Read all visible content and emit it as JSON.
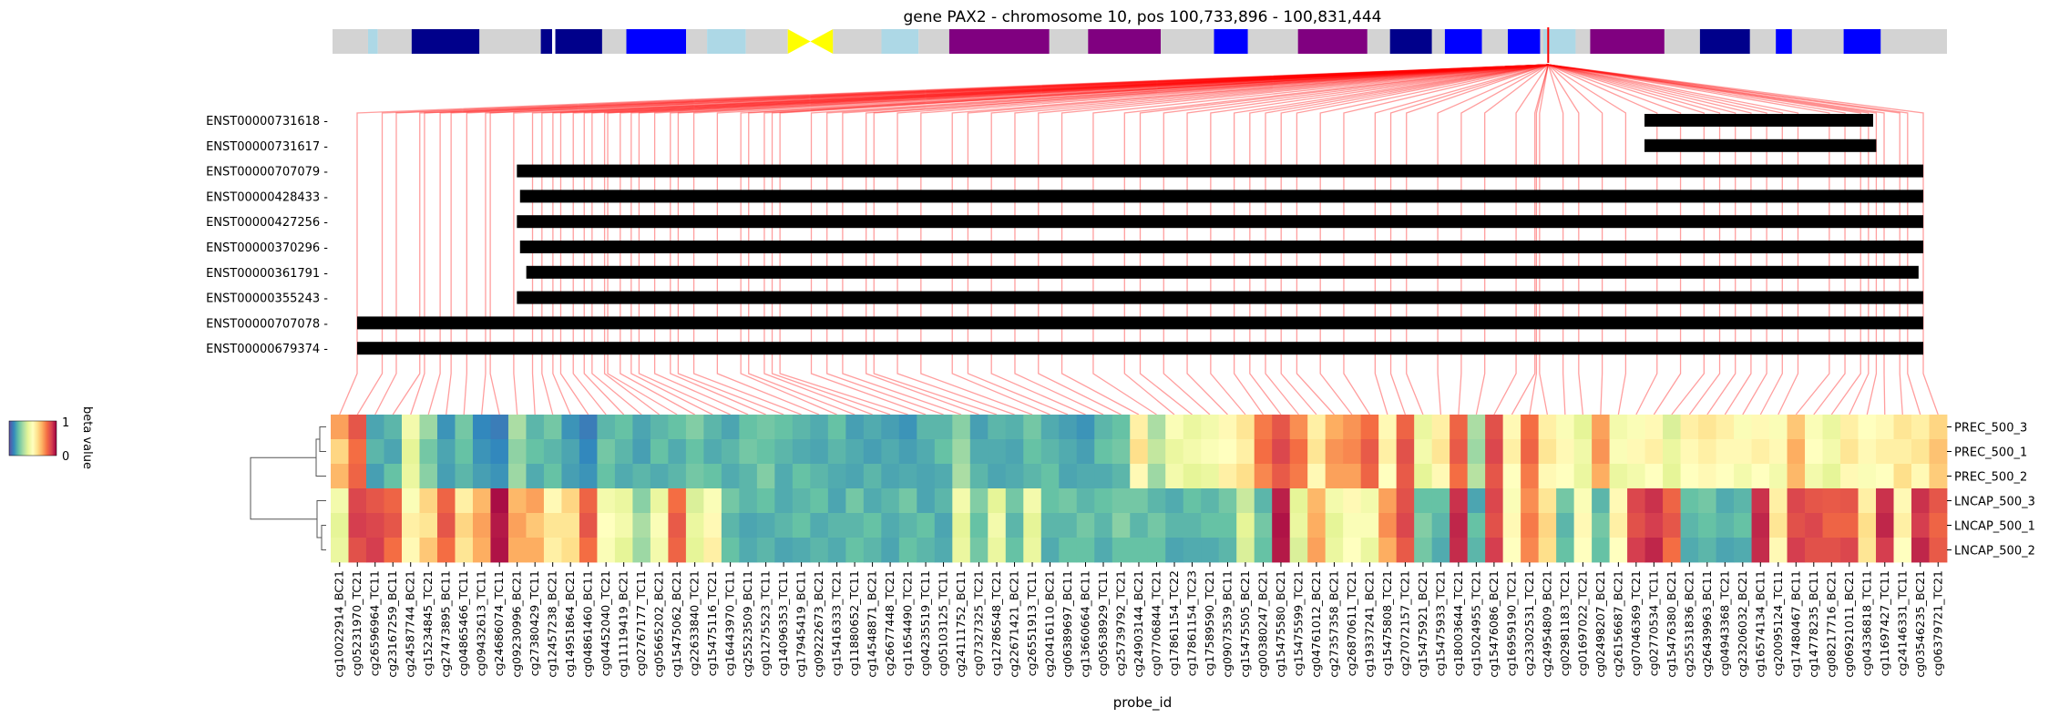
{
  "title": "gene PAX2 - chromosome 10, pos 100,733,896 - 100,831,444",
  "xlabel": "probe_id",
  "colorbar": {
    "label": "beta value",
    "max_label": "1",
    "min_label": "0",
    "colors": [
      "#5e4fa2",
      "#3288bd",
      "#66c2a5",
      "#abdda4",
      "#e6f598",
      "#ffffbf",
      "#fee08b",
      "#fdae61",
      "#f46d43",
      "#d53e4f",
      "#9e0142"
    ]
  },
  "chromosome_bands": [
    {
      "start": 0,
      "end": 0.022,
      "color": "#d3d3d3"
    },
    {
      "start": 0.022,
      "end": 0.028,
      "color": "#add8e6"
    },
    {
      "start": 0.028,
      "end": 0.049,
      "color": "#d3d3d3"
    },
    {
      "start": 0.049,
      "end": 0.091,
      "color": "#00008b"
    },
    {
      "start": 0.091,
      "end": 0.129,
      "color": "#d3d3d3"
    },
    {
      "start": 0.129,
      "end": 0.136,
      "color": "#00008b"
    },
    {
      "start": 0.136,
      "end": 0.138,
      "color": "#ffffff"
    },
    {
      "start": 0.138,
      "end": 0.167,
      "color": "#00008b"
    },
    {
      "start": 0.167,
      "end": 0.182,
      "color": "#d3d3d3"
    },
    {
      "start": 0.182,
      "end": 0.219,
      "color": "#0000ff"
    },
    {
      "start": 0.219,
      "end": 0.232,
      "color": "#d3d3d3"
    },
    {
      "start": 0.232,
      "end": 0.256,
      "color": "#add8e6"
    },
    {
      "start": 0.256,
      "end": 0.282,
      "color": "#d3d3d3"
    },
    {
      "start": 0.282,
      "end": 0.31,
      "color": "#ffff00",
      "shape": "centromere"
    },
    {
      "start": 0.31,
      "end": 0.34,
      "color": "#d3d3d3"
    },
    {
      "start": 0.34,
      "end": 0.363,
      "color": "#add8e6"
    },
    {
      "start": 0.363,
      "end": 0.382,
      "color": "#d3d3d3"
    },
    {
      "start": 0.382,
      "end": 0.444,
      "color": "#800080"
    },
    {
      "start": 0.444,
      "end": 0.468,
      "color": "#d3d3d3"
    },
    {
      "start": 0.468,
      "end": 0.513,
      "color": "#800080"
    },
    {
      "start": 0.513,
      "end": 0.546,
      "color": "#d3d3d3"
    },
    {
      "start": 0.546,
      "end": 0.567,
      "color": "#0000ff"
    },
    {
      "start": 0.567,
      "end": 0.598,
      "color": "#d3d3d3"
    },
    {
      "start": 0.598,
      "end": 0.641,
      "color": "#800080"
    },
    {
      "start": 0.641,
      "end": 0.655,
      "color": "#d3d3d3"
    },
    {
      "start": 0.655,
      "end": 0.681,
      "color": "#00008b"
    },
    {
      "start": 0.681,
      "end": 0.689,
      "color": "#d3d3d3"
    },
    {
      "start": 0.689,
      "end": 0.712,
      "color": "#0000ff"
    },
    {
      "start": 0.712,
      "end": 0.728,
      "color": "#d3d3d3"
    },
    {
      "start": 0.728,
      "end": 0.748,
      "color": "#0000ff"
    },
    {
      "start": 0.748,
      "end": 0.75,
      "color": "#d3d3d3"
    },
    {
      "start": 0.75,
      "end": 0.77,
      "color": "#add8e6"
    },
    {
      "start": 0.77,
      "end": 0.779,
      "color": "#d3d3d3"
    },
    {
      "start": 0.779,
      "end": 0.825,
      "color": "#800080"
    },
    {
      "start": 0.825,
      "end": 0.847,
      "color": "#d3d3d3"
    },
    {
      "start": 0.847,
      "end": 0.878,
      "color": "#00008b"
    },
    {
      "start": 0.878,
      "end": 0.894,
      "color": "#d3d3d3"
    },
    {
      "start": 0.894,
      "end": 0.904,
      "color": "#0000ff"
    },
    {
      "start": 0.904,
      "end": 0.936,
      "color": "#d3d3d3"
    },
    {
      "start": 0.936,
      "end": 0.959,
      "color": "#0000ff"
    },
    {
      "start": 0.959,
      "end": 1,
      "color": "#d3d3d3"
    }
  ],
  "gene_marker": 0.753,
  "transcripts": [
    {
      "id": "ENST00000731618",
      "start": 0.822,
      "end": 0.968
    },
    {
      "id": "ENST00000731617",
      "start": 0.822,
      "end": 0.97
    },
    {
      "id": "ENST00000707079",
      "start": 0.102,
      "end": 1.0
    },
    {
      "id": "ENST00000428433",
      "start": 0.104,
      "end": 1.0
    },
    {
      "id": "ENST00000427256",
      "start": 0.102,
      "end": 1.0
    },
    {
      "id": "ENST00000370296",
      "start": 0.104,
      "end": 1.0
    },
    {
      "id": "ENST00000361791",
      "start": 0.108,
      "end": 0.997
    },
    {
      "id": "ENST00000355243",
      "start": 0.102,
      "end": 1.0
    },
    {
      "id": "ENST00000707078",
      "start": 0.0,
      "end": 1.0
    },
    {
      "id": "ENST00000679374",
      "start": 0.0,
      "end": 1.0
    }
  ],
  "chart_data": {
    "type": "heatmap",
    "title": "gene PAX2 - chromosome 10, pos 100,733,896 - 100,831,444",
    "xlabel": "probe_id",
    "colorbar_label": "beta value",
    "vmin": 0,
    "vmax": 1,
    "rows": [
      "PREC_500_3",
      "PREC_500_1",
      "PREC_500_2",
      "LNCAP_500_3",
      "LNCAP_500_1",
      "LNCAP_500_2"
    ],
    "columns": [
      "cg10022914_BC21",
      "cg05231970_TC21",
      "cg26596964_TC11",
      "cg23167259_BC11",
      "cg24587744_BC21",
      "cg15234845_TC21",
      "cg27473895_BC11",
      "cg04865466_TC11",
      "cg09432613_TC11",
      "cg24686074_TC11",
      "cg09230996_BC21",
      "cg27380429_TC11",
      "cg12457238_BC21",
      "cg14951864_BC21",
      "cg04861460_BC11",
      "cg04452040_TC21",
      "cg11119419_BC21",
      "cg02767177_TC11",
      "cg05665202_BC21",
      "cg15475062_BC21",
      "cg22633840_TC21",
      "cg15475116_TC21",
      "cg16443970_TC11",
      "cg25523509_BC11",
      "cg01275523_TC11",
      "cg14096353_TC11",
      "cg17945419_BC11",
      "cg09222673_BC21",
      "cg15416333_TC21",
      "cg11880652_TC11",
      "cg14548871_BC21",
      "cg26677448_TC21",
      "cg11654490_TC21",
      "cg04235519_TC11",
      "cg05103125_TC11",
      "cg24111752_BC11",
      "cg07327325_TC21",
      "cg12786548_TC21",
      "cg22671421_BC21",
      "cg26551913_TC11",
      "cg20416110_BC21",
      "cg06389697_BC11",
      "cg13660664_BC11",
      "cg05638929_TC11",
      "cg25739792_TC21",
      "cg24903144_BC21",
      "cg07706844_TC21",
      "cg17861154_TC22",
      "cg17861154_TC23",
      "cg17589590_TC21",
      "cg09073539_BC11",
      "cg15475505_BC21",
      "cg00380247_BC21",
      "cg15475580_BC21",
      "cg15475599_TC21",
      "cg04761012_BC21",
      "cg27357358_BC21",
      "cg26870611_TC21",
      "cg19337241_BC21",
      "cg15475808_TC21",
      "cg27072157_TC21",
      "cg15475921_BC21",
      "cg15475933_TC21",
      "cg18003644_TC21",
      "cg15024955_TC21",
      "cg15476086_BC21",
      "cg16959190_TC21",
      "cg23302531_TC21",
      "cg24954809_BC21",
      "cg02981183_TC21",
      "cg01697022_TC21",
      "cg02498207_BC21",
      "cg26156687_BC21",
      "cg07046369_TC21",
      "cg02770534_TC11",
      "cg15476380_BC21",
      "cg25531836_BC21",
      "cg26439963_BC11",
      "cg04943368_TC21",
      "cg23206032_BC21",
      "cg16574134_BC11",
      "cg20095124_TC11",
      "cg17480467_BC11",
      "cg14778235_BC11",
      "cg08217716_BC21",
      "cg06921011_BC21",
      "cg04336818_TC11",
      "cg11697427_TC11",
      "cg24146331_TC11",
      "cg03546235_BC21",
      "cg06379721_TC21"
    ],
    "values": [
      [
        0.72,
        0.85,
        0.15,
        0.18,
        0.45,
        0.28,
        0.12,
        0.22,
        0.1,
        0.08,
        0.3,
        0.18,
        0.22,
        0.12,
        0.08,
        0.18,
        0.2,
        0.15,
        0.18,
        0.2,
        0.24,
        0.18,
        0.15,
        0.2,
        0.22,
        0.2,
        0.18,
        0.16,
        0.2,
        0.14,
        0.16,
        0.14,
        0.12,
        0.18,
        0.18,
        0.25,
        0.14,
        0.18,
        0.17,
        0.22,
        0.16,
        0.14,
        0.12,
        0.18,
        0.2,
        0.55,
        0.3,
        0.48,
        0.42,
        0.45,
        0.52,
        0.58,
        0.78,
        0.85,
        0.75,
        0.55,
        0.7,
        0.74,
        0.8,
        0.52,
        0.82,
        0.42,
        0.55,
        0.82,
        0.3,
        0.86,
        0.52,
        0.8,
        0.55,
        0.48,
        0.4,
        0.72,
        0.45,
        0.48,
        0.52,
        0.38,
        0.55,
        0.58,
        0.55,
        0.48,
        0.52,
        0.48,
        0.65,
        0.48,
        0.42,
        0.55,
        0.5,
        0.52,
        0.58,
        0.55,
        0.62
      ],
      [
        0.62,
        0.8,
        0.18,
        0.15,
        0.4,
        0.22,
        0.15,
        0.2,
        0.12,
        0.1,
        0.26,
        0.2,
        0.18,
        0.15,
        0.1,
        0.22,
        0.18,
        0.14,
        0.2,
        0.16,
        0.2,
        0.16,
        0.18,
        0.22,
        0.2,
        0.18,
        0.16,
        0.15,
        0.18,
        0.16,
        0.14,
        0.16,
        0.14,
        0.16,
        0.2,
        0.28,
        0.16,
        0.16,
        0.15,
        0.2,
        0.18,
        0.16,
        0.14,
        0.2,
        0.22,
        0.6,
        0.34,
        0.42,
        0.45,
        0.48,
        0.5,
        0.55,
        0.8,
        0.88,
        0.8,
        0.58,
        0.74,
        0.76,
        0.84,
        0.55,
        0.86,
        0.45,
        0.58,
        0.84,
        0.28,
        0.88,
        0.55,
        0.82,
        0.58,
        0.52,
        0.44,
        0.74,
        0.48,
        0.52,
        0.55,
        0.42,
        0.52,
        0.55,
        0.52,
        0.52,
        0.55,
        0.52,
        0.7,
        0.5,
        0.45,
        0.58,
        0.52,
        0.55,
        0.55,
        0.58,
        0.66
      ],
      [
        0.68,
        0.82,
        0.14,
        0.2,
        0.42,
        0.25,
        0.14,
        0.18,
        0.14,
        0.12,
        0.28,
        0.16,
        0.2,
        0.14,
        0.12,
        0.2,
        0.16,
        0.18,
        0.16,
        0.18,
        0.22,
        0.2,
        0.16,
        0.18,
        0.24,
        0.16,
        0.2,
        0.18,
        0.16,
        0.15,
        0.18,
        0.15,
        0.16,
        0.15,
        0.16,
        0.3,
        0.18,
        0.15,
        0.16,
        0.18,
        0.2,
        0.15,
        0.16,
        0.16,
        0.18,
        0.52,
        0.28,
        0.45,
        0.4,
        0.42,
        0.55,
        0.6,
        0.76,
        0.84,
        0.78,
        0.52,
        0.72,
        0.72,
        0.82,
        0.5,
        0.84,
        0.4,
        0.52,
        0.8,
        0.32,
        0.85,
        0.5,
        0.78,
        0.52,
        0.5,
        0.42,
        0.7,
        0.42,
        0.45,
        0.5,
        0.4,
        0.5,
        0.52,
        0.5,
        0.45,
        0.5,
        0.45,
        0.68,
        0.45,
        0.4,
        0.52,
        0.48,
        0.5,
        0.6,
        0.52,
        0.64
      ],
      [
        0.45,
        0.88,
        0.85,
        0.82,
        0.48,
        0.62,
        0.82,
        0.55,
        0.68,
        0.98,
        0.68,
        0.72,
        0.52,
        0.62,
        0.82,
        0.45,
        0.42,
        0.25,
        0.42,
        0.8,
        0.38,
        0.48,
        0.22,
        0.18,
        0.2,
        0.16,
        0.18,
        0.2,
        0.15,
        0.22,
        0.16,
        0.18,
        0.22,
        0.15,
        0.18,
        0.45,
        0.24,
        0.4,
        0.22,
        0.45,
        0.2,
        0.22,
        0.18,
        0.2,
        0.22,
        0.22,
        0.18,
        0.16,
        0.2,
        0.18,
        0.22,
        0.35,
        0.18,
        0.95,
        0.4,
        0.68,
        0.45,
        0.52,
        0.45,
        0.72,
        0.86,
        0.2,
        0.2,
        0.92,
        0.15,
        0.88,
        0.48,
        0.75,
        0.58,
        0.22,
        0.48,
        0.18,
        0.52,
        0.88,
        0.92,
        0.82,
        0.2,
        0.22,
        0.16,
        0.18,
        0.92,
        0.55,
        0.88,
        0.85,
        0.84,
        0.85,
        0.55,
        0.92,
        0.52,
        0.92,
        0.85
      ],
      [
        0.4,
        0.9,
        0.88,
        0.85,
        0.55,
        0.58,
        0.85,
        0.62,
        0.72,
        0.96,
        0.72,
        0.65,
        0.58,
        0.58,
        0.85,
        0.5,
        0.45,
        0.3,
        0.48,
        0.84,
        0.42,
        0.52,
        0.18,
        0.15,
        0.16,
        0.18,
        0.2,
        0.16,
        0.18,
        0.18,
        0.2,
        0.16,
        0.18,
        0.2,
        0.15,
        0.4,
        0.2,
        0.45,
        0.18,
        0.4,
        0.18,
        0.18,
        0.22,
        0.18,
        0.25,
        0.18,
        0.22,
        0.18,
        0.18,
        0.2,
        0.2,
        0.4,
        0.22,
        0.97,
        0.42,
        0.7,
        0.4,
        0.48,
        0.48,
        0.75,
        0.88,
        0.24,
        0.18,
        0.94,
        0.2,
        0.86,
        0.52,
        0.78,
        0.62,
        0.18,
        0.52,
        0.22,
        0.55,
        0.86,
        0.9,
        0.85,
        0.18,
        0.2,
        0.18,
        0.2,
        0.94,
        0.58,
        0.86,
        0.88,
        0.82,
        0.82,
        0.6,
        0.94,
        0.55,
        0.9,
        0.82
      ],
      [
        0.42,
        0.86,
        0.9,
        0.8,
        0.52,
        0.65,
        0.8,
        0.58,
        0.7,
        0.97,
        0.7,
        0.7,
        0.55,
        0.6,
        0.8,
        0.48,
        0.4,
        0.28,
        0.45,
        0.82,
        0.4,
        0.55,
        0.2,
        0.16,
        0.18,
        0.15,
        0.16,
        0.18,
        0.16,
        0.2,
        0.18,
        0.15,
        0.2,
        0.18,
        0.16,
        0.42,
        0.22,
        0.42,
        0.2,
        0.42,
        0.16,
        0.2,
        0.2,
        0.16,
        0.2,
        0.2,
        0.2,
        0.15,
        0.16,
        0.16,
        0.18,
        0.38,
        0.2,
        0.96,
        0.38,
        0.72,
        0.42,
        0.5,
        0.42,
        0.7,
        0.84,
        0.22,
        0.16,
        0.93,
        0.18,
        0.9,
        0.5,
        0.76,
        0.6,
        0.2,
        0.5,
        0.2,
        0.5,
        0.9,
        0.94,
        0.8,
        0.16,
        0.18,
        0.15,
        0.16,
        0.93,
        0.52,
        0.9,
        0.86,
        0.86,
        0.88,
        0.58,
        0.9,
        0.5,
        0.94,
        0.84
      ]
    ],
    "probe_positions": [
      0.0,
      0.016,
      0.025,
      0.04,
      0.043,
      0.053,
      0.06,
      0.07,
      0.082,
      0.085,
      0.1,
      0.112,
      0.118,
      0.125,
      0.13,
      0.138,
      0.145,
      0.15,
      0.158,
      0.16,
      0.168,
      0.175,
      0.18,
      0.19,
      0.2,
      0.205,
      0.215,
      0.23,
      0.245,
      0.25,
      0.26,
      0.265,
      0.27,
      0.29,
      0.3,
      0.31,
      0.325,
      0.33,
      0.345,
      0.36,
      0.38,
      0.39,
      0.405,
      0.42,
      0.435,
      0.45,
      0.47,
      0.49,
      0.5,
      0.515,
      0.53,
      0.545,
      0.56,
      0.57,
      0.58,
      0.59,
      0.6,
      0.615,
      0.63,
      0.65,
      0.66,
      0.67,
      0.69,
      0.705,
      0.72,
      0.74,
      0.752,
      0.753,
      0.755,
      0.77,
      0.78,
      0.795,
      0.81,
      0.83,
      0.845,
      0.86,
      0.87,
      0.88,
      0.89,
      0.9,
      0.91,
      0.92,
      0.94,
      0.95,
      0.96,
      0.965,
      0.97,
      0.975,
      0.985,
      0.99,
      1.0
    ]
  }
}
